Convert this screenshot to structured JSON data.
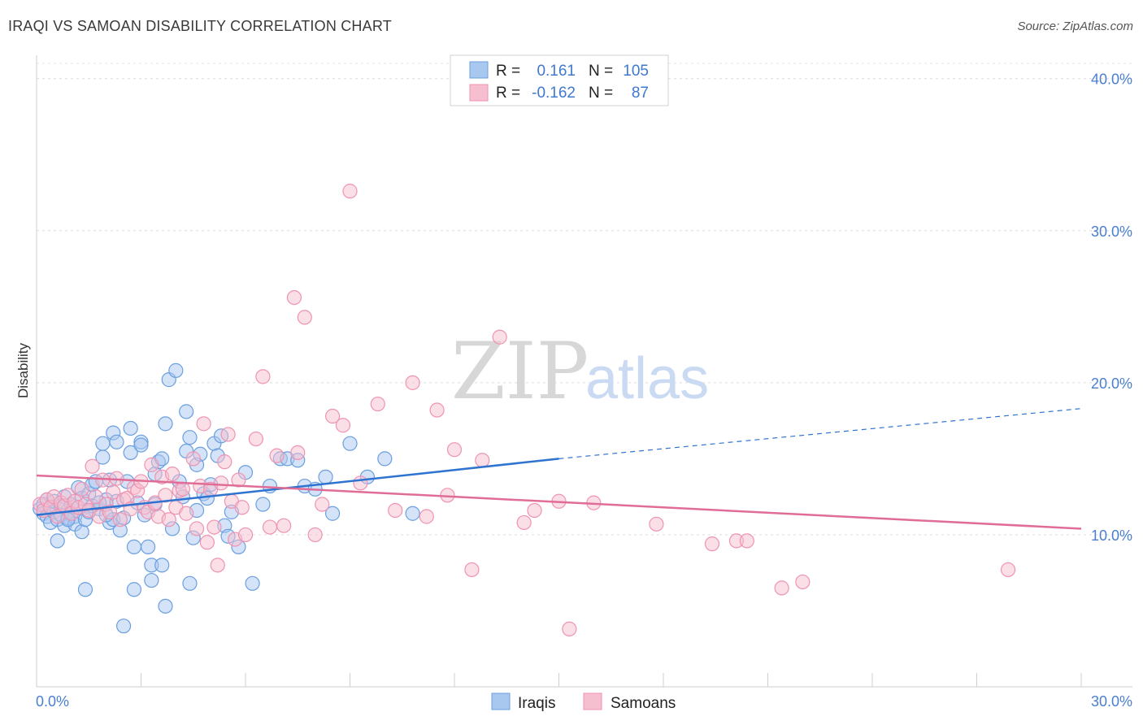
{
  "header": {
    "title": "IRAQI VS SAMOAN DISABILITY CORRELATION CHART",
    "source": "Source: ZipAtlas.com"
  },
  "watermark": {
    "zip": "ZIP",
    "atlas": "atlas"
  },
  "legend_top": [
    {
      "r_label": "R =",
      "r_value": "0.161",
      "n_label": "N =",
      "n_value": "105"
    },
    {
      "r_label": "R =",
      "r_value": "-0.162",
      "n_label": "N =",
      "n_value": "87"
    }
  ],
  "colors": {
    "iraqis_fill": "#a9c8f0",
    "iraqis_stroke": "#6a9fe0",
    "iraqis_line": "#2f73d0",
    "samoans_fill": "#f5bfd0",
    "samoans_stroke": "#ef93b2",
    "samoans_line": "#e06d97",
    "tick": "#4a7fd0"
  },
  "chart_data": {
    "type": "scatter",
    "title": "IRAQI VS SAMOAN DISABILITY CORRELATION CHART",
    "xlabel": "",
    "ylabel": "Disability",
    "xlim": [
      0,
      30
    ],
    "ylim": [
      0,
      41
    ],
    "x_tick_labels": [
      "0.0%",
      "30.0%"
    ],
    "y_ticks": [
      10,
      20,
      30,
      40
    ],
    "y_tick_labels": [
      "10.0%",
      "20.0%",
      "30.0%",
      "40.0%"
    ],
    "grid": "horizontal dashed",
    "legend_position": "bottom-center",
    "series": [
      {
        "name": "Iraqis",
        "trend": {
          "x0": 0,
          "y0": 11.3,
          "x1": 15,
          "y1": 15.0,
          "dashed_to_x": 30,
          "dashed_to_y": 18.3
        },
        "points": [
          [
            0.1,
            11.7
          ],
          [
            0.2,
            12.0
          ],
          [
            0.2,
            11.4
          ],
          [
            0.3,
            12.3
          ],
          [
            0.3,
            11.2
          ],
          [
            0.4,
            11.8
          ],
          [
            0.4,
            10.8
          ],
          [
            0.5,
            11.5
          ],
          [
            0.5,
            12.2
          ],
          [
            0.6,
            11.0
          ],
          [
            0.6,
            9.6
          ],
          [
            0.7,
            11.9
          ],
          [
            0.7,
            11.3
          ],
          [
            0.8,
            12.5
          ],
          [
            0.8,
            10.6
          ],
          [
            0.9,
            11.6
          ],
          [
            0.9,
            11.1
          ],
          [
            1.0,
            12.0
          ],
          [
            1.0,
            11.4
          ],
          [
            1.1,
            11.2
          ],
          [
            1.1,
            10.7
          ],
          [
            1.2,
            13.1
          ],
          [
            1.2,
            11.8
          ],
          [
            1.3,
            12.4
          ],
          [
            1.3,
            10.2
          ],
          [
            1.4,
            11.0
          ],
          [
            1.5,
            12.7
          ],
          [
            1.5,
            11.5
          ],
          [
            1.6,
            13.3
          ],
          [
            1.6,
            11.9
          ],
          [
            1.7,
            13.5
          ],
          [
            1.8,
            11.7
          ],
          [
            1.9,
            16.0
          ],
          [
            1.9,
            15.1
          ],
          [
            2.0,
            12.3
          ],
          [
            2.1,
            10.8
          ],
          [
            2.1,
            13.6
          ],
          [
            2.2,
            16.7
          ],
          [
            2.2,
            11.0
          ],
          [
            2.3,
            12.2
          ],
          [
            2.3,
            16.1
          ],
          [
            2.4,
            10.3
          ],
          [
            2.5,
            11.1
          ],
          [
            2.6,
            13.5
          ],
          [
            2.7,
            15.4
          ],
          [
            2.7,
            17.0
          ],
          [
            2.8,
            9.2
          ],
          [
            2.9,
            12.1
          ],
          [
            3.0,
            16.1
          ],
          [
            3.0,
            15.9
          ],
          [
            3.1,
            11.3
          ],
          [
            3.2,
            9.2
          ],
          [
            3.3,
            8.0
          ],
          [
            3.4,
            12.0
          ],
          [
            3.4,
            14.0
          ],
          [
            3.5,
            14.8
          ],
          [
            3.6,
            15.0
          ],
          [
            3.7,
            17.3
          ],
          [
            3.8,
            20.2
          ],
          [
            3.9,
            10.4
          ],
          [
            4.0,
            20.8
          ],
          [
            4.1,
            13.5
          ],
          [
            4.2,
            12.5
          ],
          [
            4.3,
            15.5
          ],
          [
            4.3,
            18.1
          ],
          [
            4.4,
            16.4
          ],
          [
            4.5,
            9.8
          ],
          [
            4.6,
            14.6
          ],
          [
            4.6,
            11.6
          ],
          [
            4.7,
            15.3
          ],
          [
            4.8,
            12.7
          ],
          [
            4.9,
            12.4
          ],
          [
            5.0,
            13.3
          ],
          [
            5.1,
            16.0
          ],
          [
            5.2,
            15.2
          ],
          [
            5.3,
            16.5
          ],
          [
            5.4,
            10.6
          ],
          [
            5.5,
            9.9
          ],
          [
            5.6,
            11.5
          ],
          [
            5.8,
            9.2
          ],
          [
            6.0,
            14.1
          ],
          [
            6.2,
            6.8
          ],
          [
            6.5,
            12.0
          ],
          [
            6.7,
            13.2
          ],
          [
            7.0,
            15.0
          ],
          [
            7.2,
            15.0
          ],
          [
            7.5,
            14.9
          ],
          [
            7.7,
            13.2
          ],
          [
            8.0,
            13.0
          ],
          [
            8.3,
            13.8
          ],
          [
            8.5,
            11.4
          ],
          [
            9.0,
            16.0
          ],
          [
            9.5,
            13.8
          ],
          [
            10.0,
            15.0
          ],
          [
            10.8,
            11.4
          ],
          [
            2.8,
            6.4
          ],
          [
            2.5,
            4.0
          ],
          [
            3.3,
            7.0
          ],
          [
            3.6,
            8.0
          ],
          [
            3.7,
            5.3
          ],
          [
            4.4,
            6.8
          ],
          [
            1.4,
            6.4
          ],
          [
            0.9,
            11.0
          ],
          [
            1.8,
            12.1
          ],
          [
            2.0,
            11.3
          ]
        ]
      },
      {
        "name": "Samoans",
        "trend": {
          "x0": 0,
          "y0": 13.9,
          "x1": 30,
          "y1": 10.4
        },
        "points": [
          [
            0.1,
            12.0
          ],
          [
            0.2,
            11.6
          ],
          [
            0.3,
            12.3
          ],
          [
            0.4,
            11.8
          ],
          [
            0.5,
            12.5
          ],
          [
            0.6,
            11.2
          ],
          [
            0.7,
            12.1
          ],
          [
            0.8,
            11.9
          ],
          [
            0.9,
            12.6
          ],
          [
            1.0,
            11.4
          ],
          [
            1.1,
            12.2
          ],
          [
            1.2,
            11.8
          ],
          [
            1.3,
            13.0
          ],
          [
            1.4,
            12.0
          ],
          [
            1.5,
            11.6
          ],
          [
            1.6,
            14.5
          ],
          [
            1.7,
            12.5
          ],
          [
            1.8,
            11.2
          ],
          [
            1.9,
            13.6
          ],
          [
            2.0,
            12.0
          ],
          [
            2.1,
            11.5
          ],
          [
            2.2,
            12.8
          ],
          [
            2.3,
            13.7
          ],
          [
            2.4,
            11.0
          ],
          [
            2.5,
            12.3
          ],
          [
            2.6,
            12.4
          ],
          [
            2.7,
            11.7
          ],
          [
            2.8,
            13.1
          ],
          [
            2.9,
            12.9
          ],
          [
            3.0,
            13.5
          ],
          [
            3.1,
            11.8
          ],
          [
            3.2,
            11.5
          ],
          [
            3.3,
            14.6
          ],
          [
            3.4,
            12.1
          ],
          [
            3.5,
            11.2
          ],
          [
            3.6,
            13.8
          ],
          [
            3.7,
            12.6
          ],
          [
            3.8,
            11.0
          ],
          [
            3.9,
            14.0
          ],
          [
            4.0,
            11.8
          ],
          [
            4.1,
            12.9
          ],
          [
            4.2,
            13.0
          ],
          [
            4.3,
            11.4
          ],
          [
            4.5,
            15.0
          ],
          [
            4.6,
            10.4
          ],
          [
            4.7,
            13.2
          ],
          [
            4.8,
            17.3
          ],
          [
            4.9,
            9.5
          ],
          [
            5.0,
            13.0
          ],
          [
            5.1,
            10.5
          ],
          [
            5.2,
            8.0
          ],
          [
            5.3,
            13.4
          ],
          [
            5.4,
            14.8
          ],
          [
            5.5,
            16.6
          ],
          [
            5.6,
            12.2
          ],
          [
            5.7,
            9.7
          ],
          [
            5.8,
            13.6
          ],
          [
            5.9,
            11.8
          ],
          [
            6.0,
            10.0
          ],
          [
            6.3,
            16.3
          ],
          [
            6.5,
            20.4
          ],
          [
            6.7,
            10.5
          ],
          [
            6.9,
            15.2
          ],
          [
            7.1,
            10.6
          ],
          [
            7.4,
            25.6
          ],
          [
            7.5,
            15.4
          ],
          [
            7.7,
            24.3
          ],
          [
            8.0,
            10.0
          ],
          [
            8.2,
            12.0
          ],
          [
            8.5,
            17.8
          ],
          [
            8.8,
            17.2
          ],
          [
            9.0,
            32.6
          ],
          [
            9.3,
            13.4
          ],
          [
            9.8,
            18.6
          ],
          [
            10.3,
            11.6
          ],
          [
            10.8,
            20.0
          ],
          [
            11.2,
            11.2
          ],
          [
            11.5,
            18.2
          ],
          [
            11.8,
            12.6
          ],
          [
            12.0,
            15.6
          ],
          [
            12.5,
            7.7
          ],
          [
            12.8,
            14.9
          ],
          [
            13.3,
            23.0
          ],
          [
            14.0,
            10.8
          ],
          [
            14.3,
            11.6
          ],
          [
            15.0,
            12.2
          ],
          [
            15.3,
            3.8
          ]
        ]
      }
    ],
    "extra_samoans_far": [
      [
        16.0,
        12.1
      ],
      [
        17.8,
        10.7
      ],
      [
        19.4,
        9.4
      ],
      [
        20.1,
        9.6
      ],
      [
        20.4,
        9.6
      ],
      [
        21.4,
        6.5
      ],
      [
        22.0,
        6.9
      ],
      [
        27.9,
        7.7
      ]
    ]
  },
  "legend_bottom": [
    {
      "label": "Iraqis"
    },
    {
      "label": "Samoans"
    }
  ]
}
